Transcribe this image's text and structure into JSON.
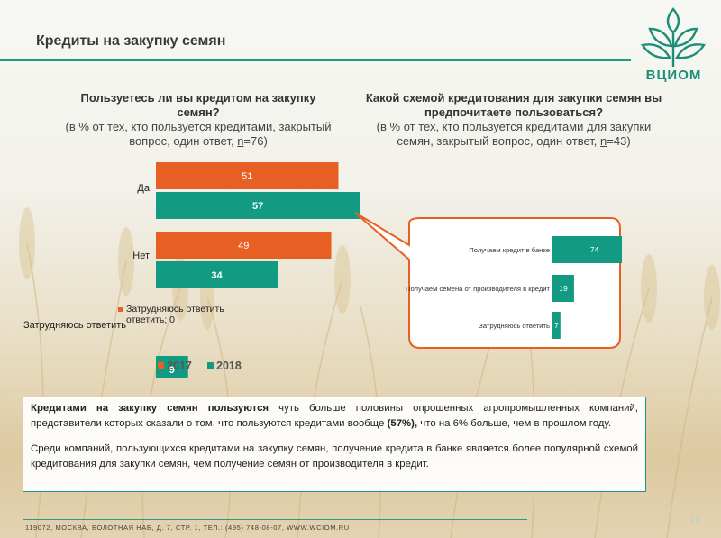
{
  "page": {
    "title": "Кредиты на закупку семян",
    "logo_text": "ВЦИОМ",
    "footer": "119072, МОСКВА, БОЛОТНАЯ НАБ, Д. 7, СТР. 1, ТЕЛ.: (495) 748-08-07, WWW.WCIOM.RU",
    "page_number": "11"
  },
  "colors": {
    "y2017": "#e85f24",
    "y2018": "#139a83",
    "accent": "#1a9a80"
  },
  "q1": {
    "title": "Пользуетесь ли вы кредитом на закупку семян?",
    "sub": "(в % от тех, кто пользуется кредитами, закрытый вопрос, один ответ, ",
    "n_letter": "n",
    "n_value": "=76)"
  },
  "q2": {
    "title": "Какой схемой кредитования для закупки семян вы предпочитаете пользоваться?",
    "sub": "(в % от тех, кто пользуется кредитами для закупки семян, закрытый вопрос, один ответ, ",
    "n_letter": "n",
    "n_value": "=43)"
  },
  "chart_data": [
    {
      "type": "bar",
      "orientation": "horizontal",
      "categories": [
        "Да",
        "Нет",
        "Затрудняюсь ответить"
      ],
      "series": [
        {
          "name": "2017",
          "values": [
            51,
            49,
            0
          ]
        },
        {
          "name": "2018",
          "values": [
            57,
            34,
            9
          ]
        }
      ],
      "annotations": [
        "Затрудняюсь ответить; 0"
      ],
      "legend": "bottom",
      "xlim": [
        0,
        100
      ]
    },
    {
      "type": "bar",
      "orientation": "horizontal",
      "categories": [
        "Получаем кредит в банке",
        "Получаем семена от производителя в кредит",
        "Затрудняюсь ответить"
      ],
      "values": [
        74,
        19,
        7
      ],
      "xlim": [
        0,
        100
      ]
    }
  ],
  "text_block": {
    "p1_bold": "Кредитами на закупку семян пользуются",
    "p1_mid": " чуть больше половины опрошенных агропромышленных компаний, представители которых сказали о том, что пользуются кредитами вообще ",
    "p1_bold2": "(57%),",
    "p1_end": " что на 6% больше, чем в прошлом году.",
    "p2": "Среди компаний, пользующихся кредитами на закупку семян, получение кредита в банке является более популярной схемой кредитования для закупки семян, чем получение семян от производителя в кредит."
  }
}
